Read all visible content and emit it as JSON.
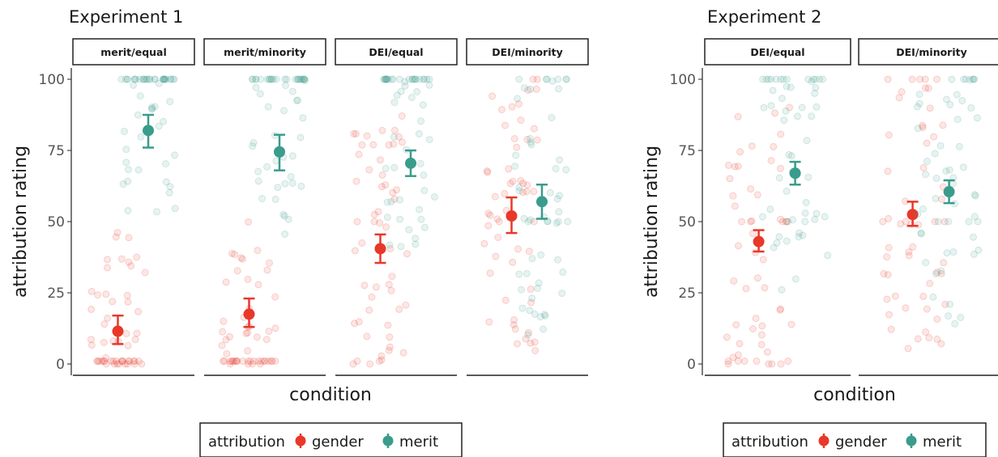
{
  "colors": {
    "gender": "#E8382A",
    "merit": "#3A9C8C"
  },
  "chart_data": [
    {
      "type": "scatter",
      "title": "Experiment 1",
      "xlabel": "condition",
      "ylabel": "attribution rating",
      "ylim": [
        0,
        100
      ],
      "yticks": [
        "0",
        "25",
        "50",
        "75",
        "100"
      ],
      "panels": [
        "merit/equal",
        "merit/minority",
        "DEI/equal",
        "DEI/minority"
      ],
      "series": [
        {
          "name": "gender",
          "means": [
            11.5,
            17.5,
            40.5,
            52
          ],
          "ci_low": [
            7,
            13,
            35.5,
            46
          ],
          "ci_high": [
            17,
            23,
            45.5,
            58.5
          ]
        },
        {
          "name": "merit",
          "means": [
            82,
            74.5,
            70.5,
            57
          ],
          "ci_low": [
            76,
            68,
            66,
            51
          ],
          "ci_high": [
            87.5,
            80.5,
            75,
            63
          ]
        }
      ],
      "legend": {
        "title": "attribution",
        "entries": [
          "gender",
          "merit"
        ],
        "position": "bottom"
      }
    },
    {
      "type": "scatter",
      "title": "Experiment 2",
      "xlabel": "condition",
      "ylabel": "attribution rating",
      "ylim": [
        0,
        100
      ],
      "yticks": [
        "0",
        "25",
        "50",
        "75",
        "100"
      ],
      "panels": [
        "DEI/equal",
        "DEI/minority"
      ],
      "series": [
        {
          "name": "gender",
          "means": [
            43,
            52.5
          ],
          "ci_low": [
            39.5,
            48.5
          ],
          "ci_high": [
            47,
            57
          ]
        },
        {
          "name": "merit",
          "means": [
            67,
            60.5
          ],
          "ci_low": [
            63,
            56.5
          ],
          "ci_high": [
            71,
            64.5
          ]
        }
      ],
      "legend": {
        "title": "attribution",
        "entries": [
          "gender",
          "merit"
        ],
        "position": "bottom"
      }
    }
  ]
}
